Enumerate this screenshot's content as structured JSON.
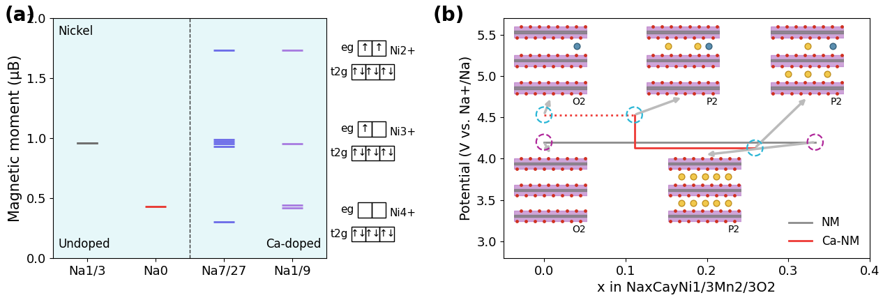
{
  "chart_data": [
    {
      "type": "scatter",
      "panel_label": "(a)",
      "ylabel": "Magnetic moment (μB)",
      "categories": [
        "Na1/3",
        "Na0",
        "Na7/27",
        "Na1/9"
      ],
      "ylim": [
        0,
        2.0
      ],
      "yticks": [
        {
          "value": 0,
          "label": "0.0"
        },
        {
          "value": 0.5,
          "label": "0.5"
        },
        {
          "value": 1.0,
          "label": "1.0"
        },
        {
          "value": 1.5,
          "label": "1.5"
        },
        {
          "value": 2.0,
          "label": "2.0"
        }
      ],
      "marker": "_",
      "annotations": [
        "Nickel",
        "Undoped",
        "Ca-doped"
      ],
      "points": [
        {
          "category": "Na1/3",
          "color": "#707070",
          "values": [
            0.96,
            0.96,
            0.96
          ]
        },
        {
          "category": "Na0",
          "color": "#e8352e",
          "values": [
            0.43
          ]
        },
        {
          "category": "Na7/27",
          "color": "#6a6ae8",
          "values": [
            1.73,
            0.99,
            0.97,
            0.95,
            0.93,
            0.3
          ]
        },
        {
          "category": "Na1/9",
          "color": "#a77ae0",
          "values": [
            1.73,
            0.95,
            0.44,
            0.42
          ]
        }
      ]
    },
    {
      "type": "line",
      "panel_label": "(b)",
      "xlabel": "x in NaxCayNi1/3Mn2/3O2",
      "ylabel": "Potential (V vs. Na+/Na)",
      "xlim": [
        -0.05,
        0.4
      ],
      "xticks": [
        {
          "value": 0,
          "label": "0.0"
        },
        {
          "value": 0.1,
          "label": "0.1"
        },
        {
          "value": 0.2,
          "label": "0.2"
        },
        {
          "value": 0.3,
          "label": "0.3"
        },
        {
          "value": 0.4,
          "label": "0.4"
        }
      ],
      "ylim": [
        2.8,
        5.7
      ],
      "yticks": [
        {
          "value": 3.0,
          "label": "3.0"
        },
        {
          "value": 3.5,
          "label": "3.5"
        },
        {
          "value": 4.0,
          "label": "4.0"
        },
        {
          "value": 4.5,
          "label": "4.5"
        },
        {
          "value": 5.0,
          "label": "5.0"
        },
        {
          "value": 5.5,
          "label": "5.5"
        }
      ],
      "legend": "lower right",
      "series": [
        {
          "name": "NM",
          "color": "#8c8c8c",
          "line_style": "solid",
          "x": [
            0,
            0.333
          ],
          "values": [
            4.2,
            4.2
          ]
        },
        {
          "name": "Ca-NM",
          "color": "#ee3a36",
          "line_style": "solid",
          "x": [
            0.111,
            0.111,
            0.259
          ],
          "values": [
            4.53,
            4.13,
            4.13
          ]
        },
        {
          "color": "#ee3a36",
          "line_style": "dotted",
          "x": [
            0,
            0.111
          ],
          "values": [
            4.53,
            4.53
          ]
        },
        {
          "type": "scatter",
          "marker": "o",
          "color": "#29b6d6",
          "x": [
            0,
            0.111,
            0.259
          ],
          "values": [
            4.53,
            4.53,
            4.13
          ]
        },
        {
          "type": "scatter",
          "marker": "o",
          "color": "#b0279a",
          "x": [
            0,
            0.333
          ],
          "values": [
            4.2,
            4.2
          ]
        }
      ],
      "structures": [
        {
          "label": "O2"
        },
        {
          "label": "P2"
        },
        {
          "label": "P2"
        },
        {
          "label": "O2"
        },
        {
          "label": "P2"
        }
      ]
    }
  ],
  "orbital_diagrams": [
    {
      "ion": "Ni2+",
      "eg_label": "eg",
      "t2g_label": "t2g",
      "eg": [
        "↑",
        "↑"
      ],
      "t2g": [
        "↑↓",
        "↑↓",
        "↑↓"
      ]
    },
    {
      "ion": "Ni3+",
      "eg_label": "eg",
      "t2g_label": "t2g",
      "eg": [
        "↑",
        ""
      ],
      "t2g": [
        "↑↓",
        "↑↓",
        "↑↓"
      ]
    },
    {
      "ion": "Ni4+",
      "eg_label": "eg",
      "t2g_label": "t2g",
      "eg": [
        "",
        ""
      ],
      "t2g": [
        "↑↓",
        "↑↓",
        "↑↓"
      ]
    }
  ]
}
